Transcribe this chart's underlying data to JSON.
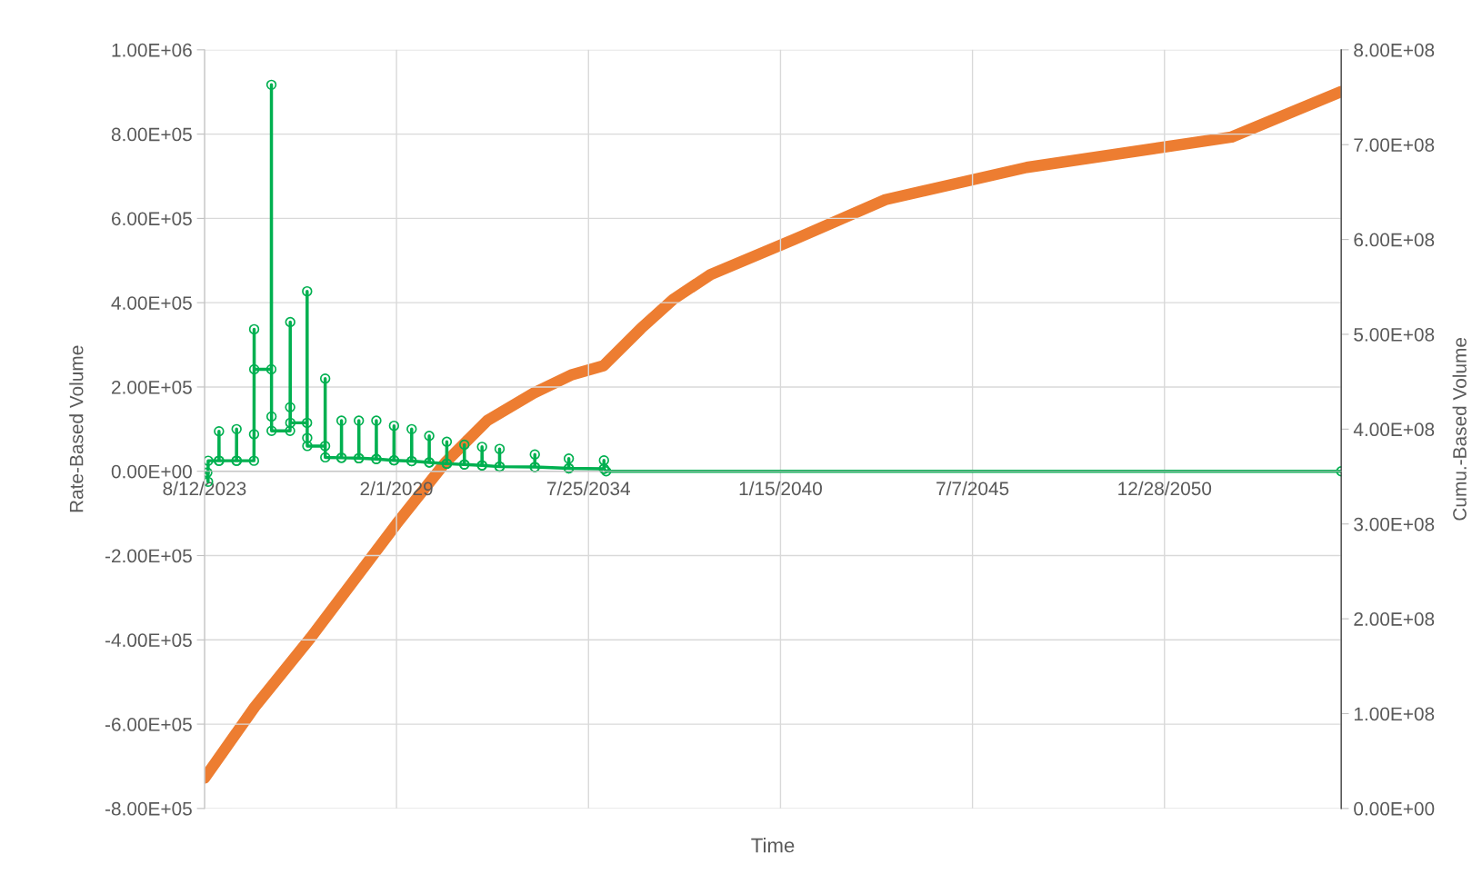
{
  "chart_data": {
    "type": "line",
    "xlabel": "Time",
    "ylabel": "Rate-Based Volume",
    "y2label": "Cumu.-Based Volume",
    "xlim": [
      "2023-08-12",
      "2056-01-12"
    ],
    "xticks": [
      {
        "value": "2023-08-12",
        "label": "8/12/2023"
      },
      {
        "value": "2029-02-01",
        "label": "2/1/2029"
      },
      {
        "value": "2034-07-25",
        "label": "7/25/2034"
      },
      {
        "value": "2040-01-15",
        "label": "1/15/2040"
      },
      {
        "value": "2045-07-07",
        "label": "7/7/2045"
      },
      {
        "value": "2050-12-28",
        "label": "12/28/2050"
      }
    ],
    "ylim": [
      -800000,
      1000000
    ],
    "yticks": [
      {
        "value": -800000,
        "label": "-8.00E+05"
      },
      {
        "value": -600000,
        "label": "-6.00E+05"
      },
      {
        "value": -400000,
        "label": "-4.00E+05"
      },
      {
        "value": -200000,
        "label": "-2.00E+05"
      },
      {
        "value": 0,
        "label": "0.00E+00"
      },
      {
        "value": 200000,
        "label": "2.00E+05"
      },
      {
        "value": 400000,
        "label": "4.00E+05"
      },
      {
        "value": 600000,
        "label": "6.00E+05"
      },
      {
        "value": 800000,
        "label": "8.00E+05"
      },
      {
        "value": 1000000,
        "label": "1.00E+06"
      }
    ],
    "y2lim": [
      0,
      800000000
    ],
    "y2ticks": [
      {
        "value": 0,
        "label": "0.00E+00"
      },
      {
        "value": 100000000,
        "label": "1.00E+08"
      },
      {
        "value": 200000000,
        "label": "2.00E+08"
      },
      {
        "value": 300000000,
        "label": "3.00E+08"
      },
      {
        "value": 400000000,
        "label": "4.00E+08"
      },
      {
        "value": 500000000,
        "label": "5.00E+08"
      },
      {
        "value": 600000000,
        "label": "6.00E+08"
      },
      {
        "value": 700000000,
        "label": "7.00E+08"
      },
      {
        "value": 800000000,
        "label": "8.00E+08"
      }
    ],
    "grid": true,
    "line_style": "solid",
    "series": [
      {
        "color": "#00b050",
        "marker": "circle",
        "axis": "y",
        "x": [
          "2023-08-12",
          "2023-09-10",
          "2023-09-18",
          "2023-09-19",
          "2024-01-09",
          "2024-01-10",
          "2024-01-11",
          "2024-07-10",
          "2024-07-11",
          "2024-07-12",
          "2025-01-08",
          "2025-01-09",
          "2025-01-10",
          "2025-01-11",
          "2025-07-08",
          "2025-07-09",
          "2025-07-10",
          "2025-07-11",
          "2026-01-19",
          "2026-01-20",
          "2026-01-21",
          "2026-01-22",
          "2026-07-15",
          "2026-07-16",
          "2026-07-17",
          "2026-07-18",
          "2027-01-19",
          "2027-01-20",
          "2027-01-21",
          "2027-07-08",
          "2027-07-09",
          "2027-07-10",
          "2028-01-05",
          "2028-01-06",
          "2028-01-07",
          "2028-07-05",
          "2028-07-06",
          "2028-07-07",
          "2029-01-05",
          "2029-01-06",
          "2029-01-07",
          "2029-07-08",
          "2029-07-09",
          "2029-07-10",
          "2030-01-07",
          "2030-01-08",
          "2030-01-09",
          "2030-07-09",
          "2030-07-10",
          "2030-07-11",
          "2031-01-08",
          "2031-01-09",
          "2031-01-10",
          "2031-07-11",
          "2031-07-12",
          "2031-07-13",
          "2032-01-10",
          "2032-01-11",
          "2032-01-12",
          "2033-01-11",
          "2033-01-12",
          "2033-01-13",
          "2033-12-31",
          "2034-01-01",
          "2034-01-02",
          "2035-01-01",
          "2035-01-02",
          "2035-01-03",
          "2035-01-25",
          "2056-01-12"
        ],
        "values": [
          -3000,
          -3000,
          -25000,
          25000,
          25000,
          95000,
          25000,
          25000,
          100000,
          25000,
          25000,
          88000,
          337000,
          242000,
          242000,
          917000,
          130000,
          96000,
          96000,
          152000,
          354000,
          115000,
          115000,
          427000,
          79000,
          60000,
          60000,
          220000,
          33000,
          32000,
          120000,
          32000,
          31000,
          120000,
          31000,
          29000,
          120000,
          29000,
          26000,
          108000,
          26000,
          24000,
          100000,
          24000,
          21000,
          84000,
          21000,
          18000,
          70000,
          18000,
          16000,
          63000,
          16000,
          14000,
          58000,
          14000,
          11000,
          53000,
          11000,
          10000,
          40000,
          10000,
          7000,
          30000,
          7000,
          6000,
          26000,
          6000,
          0,
          0
        ]
      },
      {
        "color": "#ed7d31",
        "marker": "none",
        "axis": "y2",
        "x": [
          "2023-08-12",
          "2025-01-16",
          "2026-08-21",
          "2029-02-01",
          "2030-06-26",
          "2031-09-05",
          "2033-01-01",
          "2034-01-24",
          "2034-12-30",
          "2036-01-21",
          "2036-12-25",
          "2038-01-16",
          "2040-06-06",
          "2043-01-12",
          "2047-01-24",
          "2052-11-25",
          "2056-01-12"
        ],
        "values": [
          32000000,
          107000000,
          180000000,
          300000000,
          365000000,
          409000000,
          438000000,
          457000000,
          467000000,
          506000000,
          537000000,
          563000000,
          600000000,
          642000000,
          676000000,
          708000000,
          756000000
        ]
      }
    ]
  }
}
